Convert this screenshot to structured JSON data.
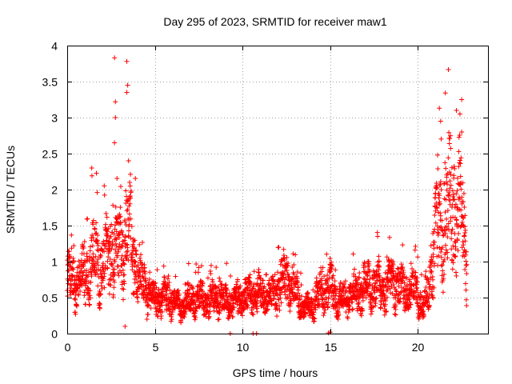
{
  "chart_data": {
    "type": "scatter",
    "title": "Day 295 of 2023, SRMTID for receiver maw1",
    "xlabel": "GPS time / hours",
    "ylabel": "SRMTID / TECUs",
    "xlim": [
      0,
      24
    ],
    "ylim": [
      0,
      4
    ],
    "x_ticks": [
      0,
      5,
      10,
      15,
      20
    ],
    "y_ticks": [
      0,
      0.5,
      1,
      1.5,
      2,
      2.5,
      3,
      3.5,
      4
    ],
    "x_tick_labels": [
      "0",
      "5",
      "10",
      "15",
      "20"
    ],
    "y_tick_labels": [
      "0",
      "0.5",
      "1",
      "1.5",
      "2",
      "2.5",
      "3",
      "3.5",
      "4"
    ],
    "grid": true,
    "marker": "+",
    "marker_color": "#ff0000",
    "x_range_of_data": [
      0,
      22.8
    ],
    "approx_points": 3000,
    "profile": [
      {
        "x": 0.0,
        "y": 0.75
      },
      {
        "x": 0.5,
        "y": 0.7
      },
      {
        "x": 1.0,
        "y": 0.8
      },
      {
        "x": 1.5,
        "y": 1.1
      },
      {
        "x": 2.0,
        "y": 0.9
      },
      {
        "x": 2.5,
        "y": 1.2
      },
      {
        "x": 3.0,
        "y": 1.2
      },
      {
        "x": 3.5,
        "y": 1.5
      },
      {
        "x": 4.0,
        "y": 0.85
      },
      {
        "x": 4.5,
        "y": 0.6
      },
      {
        "x": 5.0,
        "y": 0.45
      },
      {
        "x": 5.5,
        "y": 0.5
      },
      {
        "x": 6.0,
        "y": 0.45
      },
      {
        "x": 6.5,
        "y": 0.35
      },
      {
        "x": 7.0,
        "y": 0.45
      },
      {
        "x": 7.5,
        "y": 0.5
      },
      {
        "x": 8.0,
        "y": 0.45
      },
      {
        "x": 8.5,
        "y": 0.5
      },
      {
        "x": 9.0,
        "y": 0.45
      },
      {
        "x": 9.5,
        "y": 0.45
      },
      {
        "x": 10.0,
        "y": 0.5
      },
      {
        "x": 10.5,
        "y": 0.55
      },
      {
        "x": 11.0,
        "y": 0.55
      },
      {
        "x": 11.5,
        "y": 0.55
      },
      {
        "x": 12.0,
        "y": 0.55
      },
      {
        "x": 12.5,
        "y": 0.8
      },
      {
        "x": 13.0,
        "y": 0.55
      },
      {
        "x": 13.5,
        "y": 0.35
      },
      {
        "x": 14.0,
        "y": 0.4
      },
      {
        "x": 14.5,
        "y": 0.6
      },
      {
        "x": 15.0,
        "y": 0.65
      },
      {
        "x": 15.5,
        "y": 0.45
      },
      {
        "x": 16.0,
        "y": 0.5
      },
      {
        "x": 16.5,
        "y": 0.55
      },
      {
        "x": 17.0,
        "y": 0.65
      },
      {
        "x": 17.5,
        "y": 0.65
      },
      {
        "x": 18.0,
        "y": 0.6
      },
      {
        "x": 18.5,
        "y": 0.7
      },
      {
        "x": 19.0,
        "y": 0.65
      },
      {
        "x": 19.5,
        "y": 0.6
      },
      {
        "x": 20.0,
        "y": 0.55
      },
      {
        "x": 20.3,
        "y": 0.35
      },
      {
        "x": 20.6,
        "y": 0.6
      },
      {
        "x": 21.0,
        "y": 1.3
      },
      {
        "x": 21.5,
        "y": 1.6
      },
      {
        "x": 22.0,
        "y": 1.8
      },
      {
        "x": 22.4,
        "y": 1.8
      },
      {
        "x": 22.8,
        "y": 1.0
      }
    ],
    "notable_points": [
      {
        "x": 2.7,
        "y": 3.83
      },
      {
        "x": 3.4,
        "y": 3.78
      },
      {
        "x": 3.45,
        "y": 3.45
      },
      {
        "x": 3.4,
        "y": 3.35
      },
      {
        "x": 2.75,
        "y": 3.22
      },
      {
        "x": 2.75,
        "y": 3.0
      },
      {
        "x": 2.7,
        "y": 2.65
      },
      {
        "x": 3.5,
        "y": 2.4
      },
      {
        "x": 1.4,
        "y": 2.3
      },
      {
        "x": 22.5,
        "y": 3.25
      },
      {
        "x": 22.2,
        "y": 3.1
      },
      {
        "x": 22.4,
        "y": 3.05
      },
      {
        "x": 21.3,
        "y": 2.95
      },
      {
        "x": 22.5,
        "y": 2.8
      },
      {
        "x": 3.3,
        "y": 0.1
      },
      {
        "x": 10.6,
        "y": 0.0
      },
      {
        "x": 10.8,
        "y": 0.0
      },
      {
        "x": 9.3,
        "y": 0.0
      },
      {
        "x": 15.0,
        "y": 0.02
      },
      {
        "x": 14.9,
        "y": 0.01
      }
    ]
  }
}
